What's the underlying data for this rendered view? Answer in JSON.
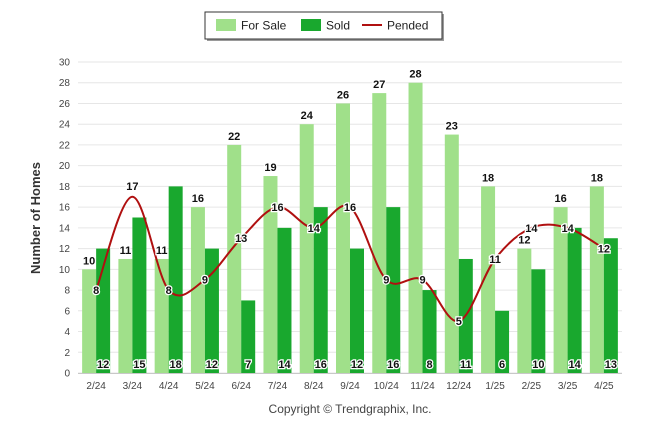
{
  "chart_data": {
    "type": "bar",
    "title": "",
    "xlabel": "",
    "ylabel": "Number of Homes",
    "ylim": [
      0,
      30
    ],
    "y_ticks": [
      0,
      2,
      4,
      6,
      8,
      10,
      12,
      14,
      16,
      18,
      20,
      22,
      24,
      26,
      28,
      30
    ],
    "grid": true,
    "legend_position": "top-center",
    "categories": [
      "2/24",
      "3/24",
      "4/24",
      "5/24",
      "6/24",
      "7/24",
      "8/24",
      "9/24",
      "10/24",
      "11/24",
      "12/24",
      "1/25",
      "2/25",
      "3/25",
      "4/25"
    ],
    "series": [
      {
        "name": "For Sale",
        "type": "bar",
        "color": "#a0e08a",
        "values": [
          10,
          11,
          11,
          16,
          22,
          19,
          24,
          26,
          27,
          28,
          23,
          18,
          12,
          16,
          18
        ]
      },
      {
        "name": "Sold",
        "type": "bar",
        "color": "#19a82e",
        "values": [
          12,
          15,
          18,
          12,
          7,
          14,
          16,
          12,
          16,
          8,
          11,
          6,
          10,
          14,
          13
        ]
      },
      {
        "name": "Pended",
        "type": "line",
        "color": "#b01010",
        "values": [
          8,
          17,
          8,
          9,
          13,
          16,
          14,
          16,
          9,
          9,
          5,
          11,
          14,
          14,
          12
        ]
      }
    ]
  },
  "copyright": "Copyright © Trendgraphix, Inc."
}
